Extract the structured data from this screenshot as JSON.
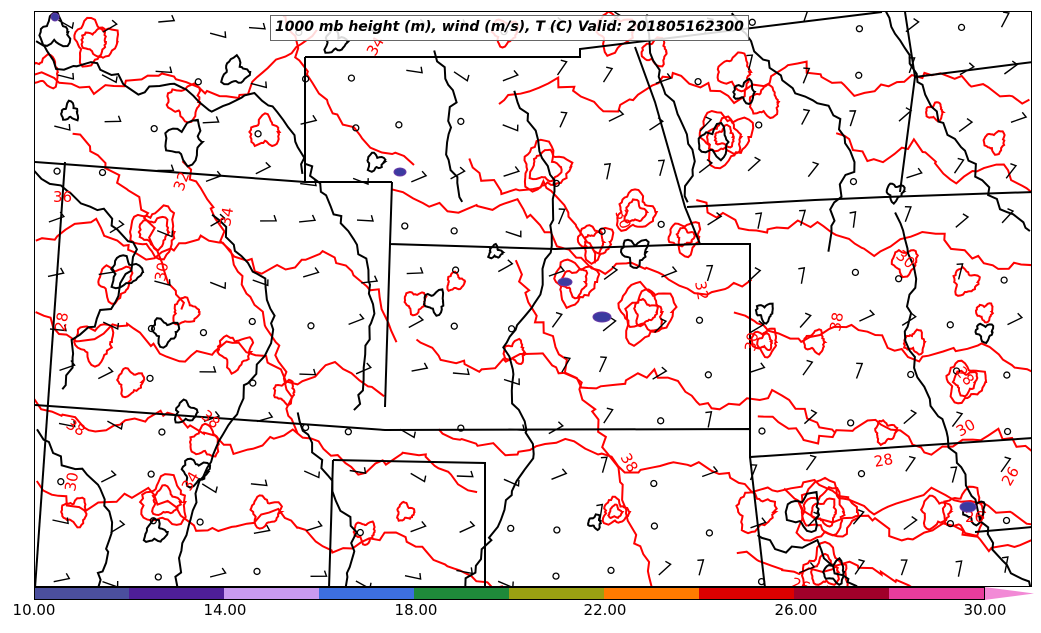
{
  "title": "1000 mb height (m), wind (m/s), T (C) Valid: 201805162300",
  "colorbar": {
    "ticks": [
      "10.00",
      "14.00",
      "18.00",
      "22.00",
      "26.00",
      "30.00"
    ],
    "colors": [
      "#4b4f9e",
      "#4e1e98",
      "#c99af0",
      "#3d6fe0",
      "#1f8a3a",
      "#9aa012",
      "#ff7b00",
      "#dd0000",
      "#a0002a",
      "#e83c9c",
      "#f28ad6"
    ]
  },
  "contour_labels": [
    "34",
    "36",
    "32",
    "34",
    "30",
    "38",
    "38",
    "34",
    "32",
    "38",
    "38",
    "30",
    "28",
    "30",
    "28",
    "30",
    "28",
    "30",
    "26",
    "26",
    "30",
    "26"
  ],
  "colors": {
    "temperature_contour": "#ff0000",
    "height_contour": "#000000",
    "boundary": "#000000"
  }
}
